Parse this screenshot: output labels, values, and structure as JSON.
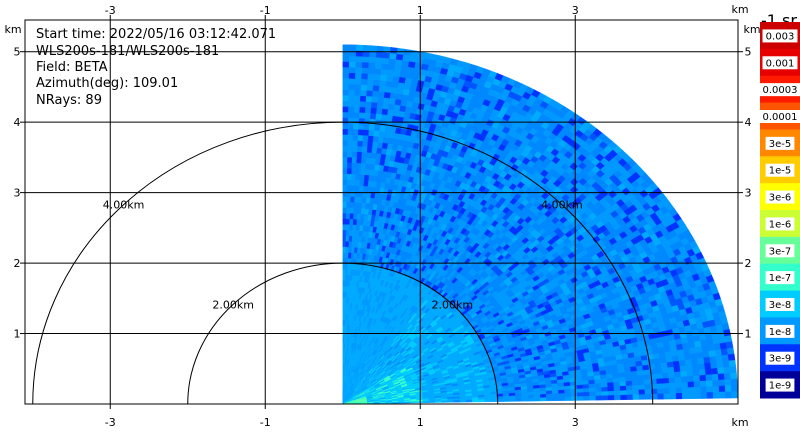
{
  "chart_data": {
    "type": "heatmap",
    "info": {
      "start_time": "Start time: 2022/05/16 03:12:42.071",
      "site": "WLS200s-181/WLS200s-181",
      "field": "Field: BETA",
      "azimuth": "Azimuth(deg): 109.01",
      "nrays": "NRays: 89"
    },
    "units_label": "km",
    "x_axis": {
      "range": [
        -4.1,
        5.1
      ],
      "ticks": [
        -3,
        -1,
        1,
        3
      ],
      "tick_labels": [
        "-3",
        "-1",
        "1",
        "3"
      ]
    },
    "y_axis": {
      "range": [
        0,
        5.45
      ],
      "ticks": [
        1,
        2,
        3,
        4,
        5
      ],
      "tick_labels": [
        "1",
        "2",
        "3",
        "4",
        "5"
      ]
    },
    "grid": true,
    "range_rings": [
      {
        "radius_km": 2.0,
        "label": "2.00km"
      },
      {
        "radius_km": 4.0,
        "label": "4.00km"
      }
    ],
    "sector": {
      "azimuth_start_deg": 0,
      "azimuth_end_deg": 89,
      "max_range_km": 5.1
    },
    "colorbar": {
      "title": "-1 sr",
      "labels": [
        "0.003",
        "0.001",
        "0.0003",
        "0.0001",
        "3e-5",
        "1e-5",
        "3e-6",
        "1e-6",
        "3e-7",
        "1e-7",
        "3e-8",
        "1e-8",
        "3e-9",
        "1e-9"
      ],
      "colors": [
        "#cc0000",
        "#e60000",
        "#ff1a00",
        "#ff5500",
        "#ff8800",
        "#ffcc00",
        "#ffff00",
        "#ccff33",
        "#66ff99",
        "#33ffcc",
        "#00ccff",
        "#0099ff",
        "#0033ff",
        "#000099"
      ]
    }
  }
}
